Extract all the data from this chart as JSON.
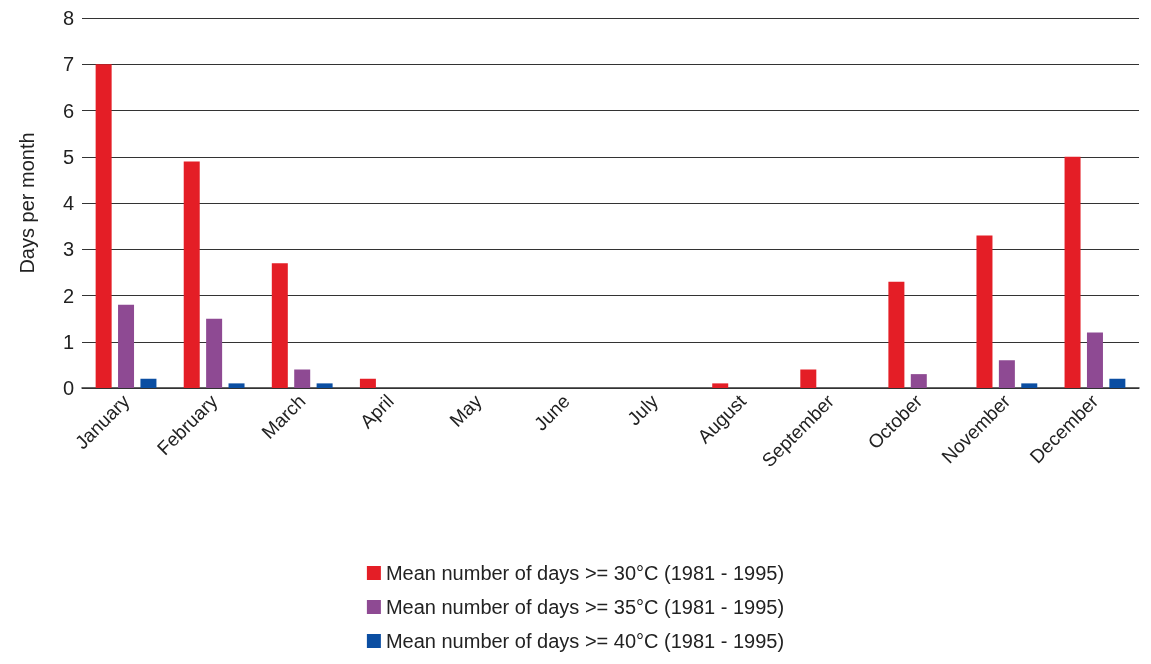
{
  "chart_data": {
    "type": "bar",
    "ylabel": "Days per month",
    "categories": [
      "January",
      "February",
      "March",
      "April",
      "May",
      "June",
      "July",
      "August",
      "September",
      "October",
      "November",
      "December"
    ],
    "series": [
      {
        "name": "Mean number of days >= 30°C (1981 - 1995)",
        "color": "#e41e26",
        "values": [
          7.0,
          4.9,
          2.7,
          0.2,
          0,
          0,
          0,
          0.1,
          0.4,
          2.3,
          3.3,
          5.0
        ]
      },
      {
        "name": "Mean number of days >= 35°C (1981 - 1995)",
        "color": "#8e4a93",
        "values": [
          1.8,
          1.5,
          0.4,
          0,
          0,
          0,
          0,
          0,
          0,
          0.3,
          0.6,
          1.2
        ]
      },
      {
        "name": "Mean number of days >= 40°C (1981 - 1995)",
        "color": "#0b4ea2",
        "values": [
          0.2,
          0.1,
          0.1,
          0,
          0,
          0,
          0,
          0,
          0,
          0,
          0.1,
          0.2
        ]
      }
    ],
    "ylim": [
      0,
      8
    ],
    "yticks": [
      0,
      1,
      2,
      3,
      4,
      5,
      6,
      7,
      8
    ],
    "grid": "y",
    "legend": "bottom"
  }
}
